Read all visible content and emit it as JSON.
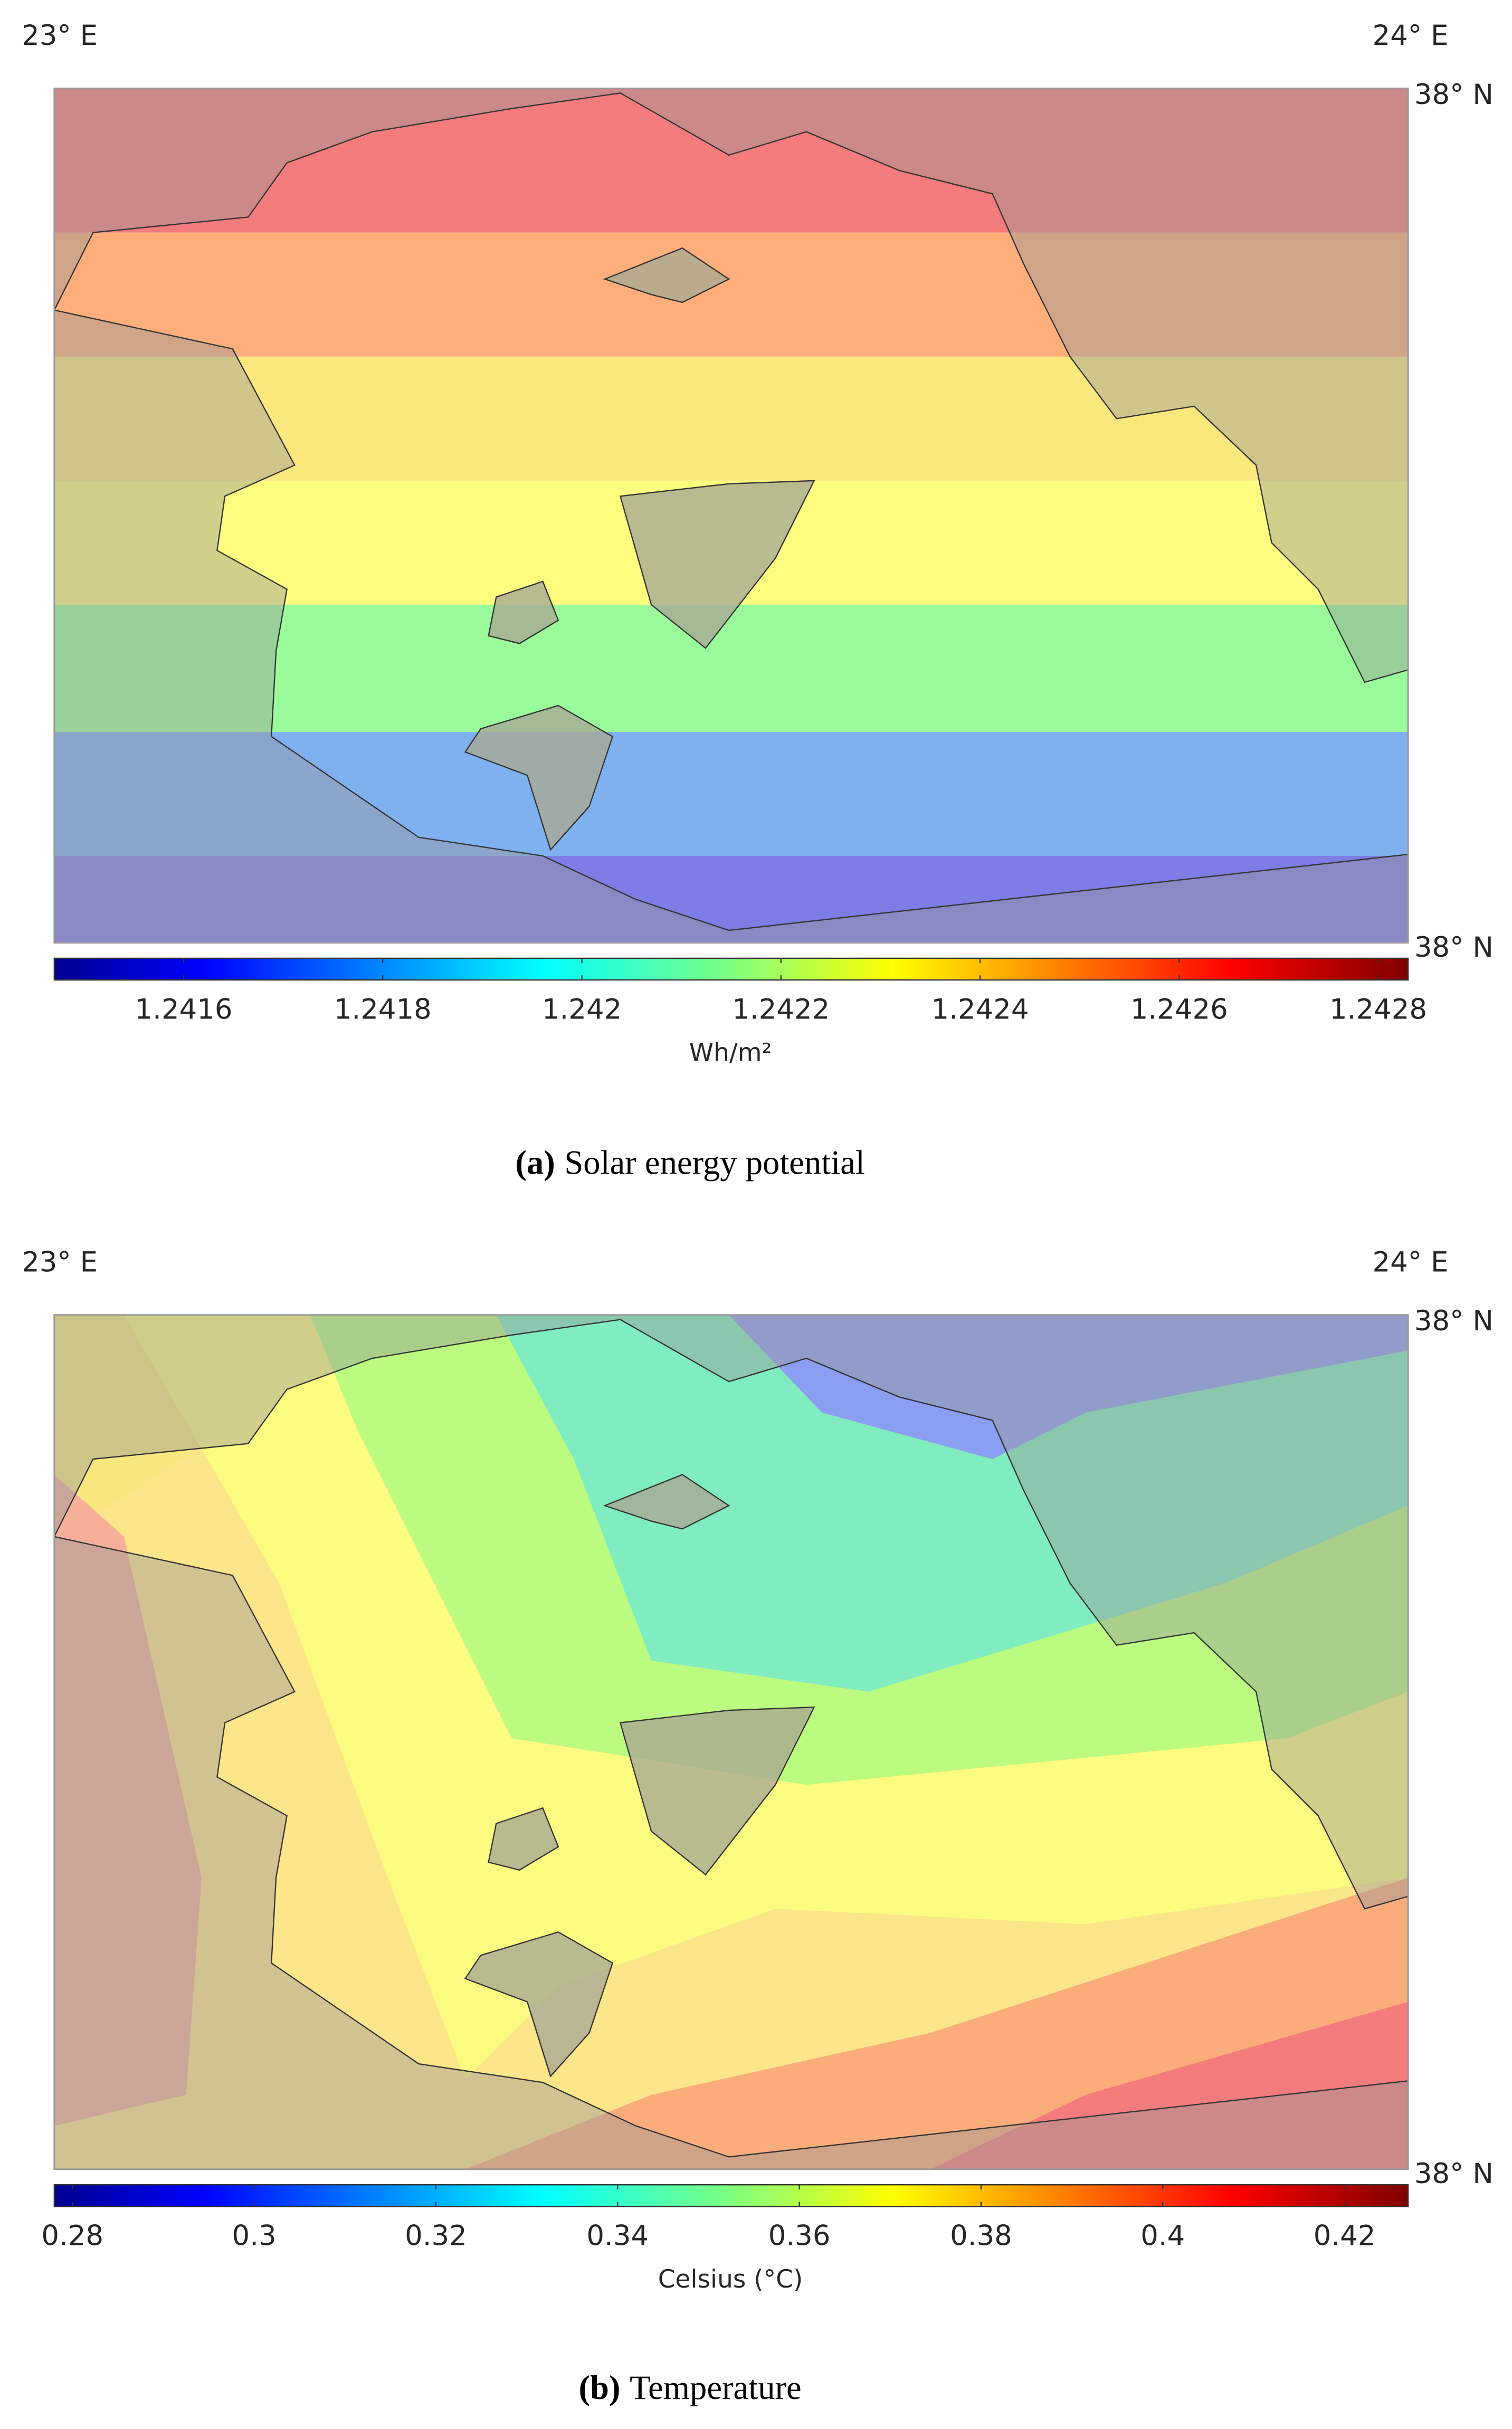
{
  "panels": [
    {
      "top_left": "23° E",
      "top_right": "24° E",
      "right_top": "38° N",
      "right_bottom": "38° N",
      "colorbar": {
        "lim": [
          1.24147,
          1.24283
        ],
        "ticks": [
          1.2416,
          1.2418,
          1.242,
          1.2422,
          1.2424,
          1.2426,
          1.2428
        ],
        "label": "Wh/m²"
      },
      "caption": {
        "label": "(a)",
        "text": "Solar energy potential"
      }
    },
    {
      "top_left": "23° E",
      "top_right": "24° E",
      "right_top": "38° N",
      "right_bottom": "38° N",
      "colorbar": {
        "lim": [
          0.278,
          0.427
        ],
        "ticks": [
          0.28,
          0.3,
          0.32,
          0.34,
          0.36,
          0.38,
          0.4,
          0.42
        ],
        "label": "Celsius (°C)"
      },
      "caption": {
        "label": "(b)",
        "text": "Temperature"
      }
    }
  ]
}
